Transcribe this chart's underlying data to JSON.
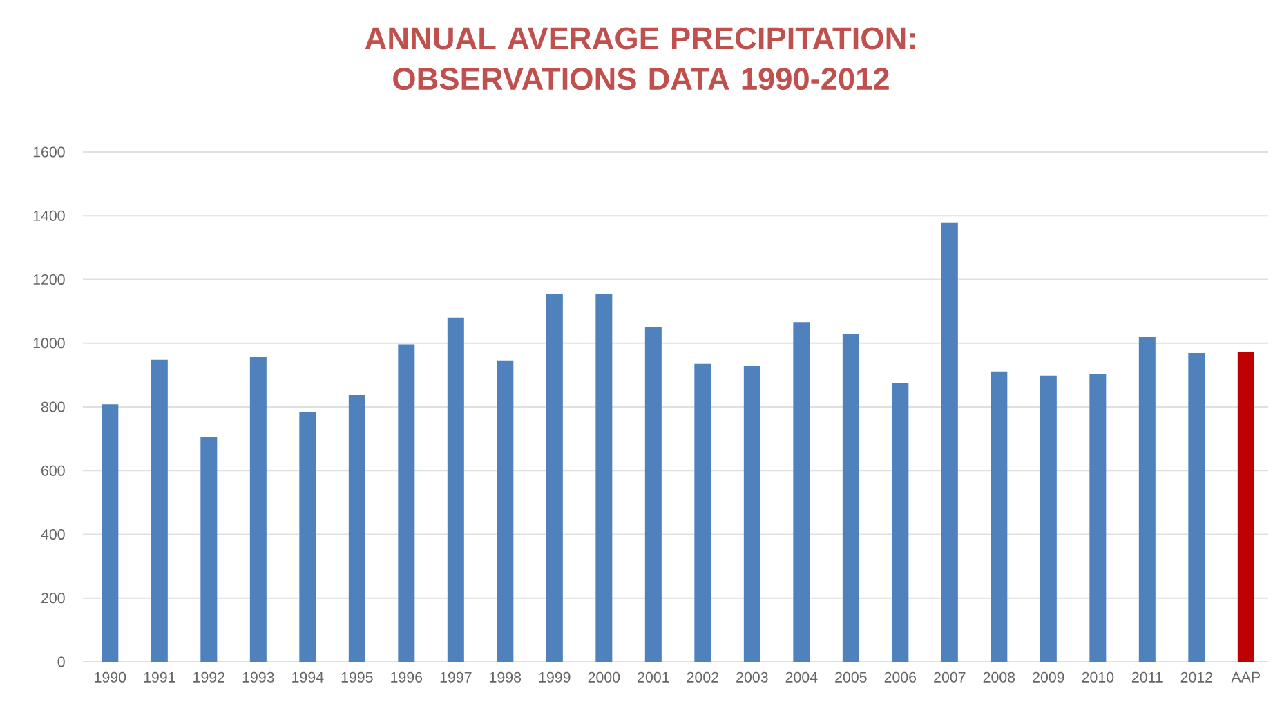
{
  "chart_data": {
    "type": "bar",
    "title": "ANNUAL AVERAGE PRECIPITATION: OBSERVATIONS DATA 1990-2012",
    "categories": [
      "1990",
      "1991",
      "1992",
      "1993",
      "1994",
      "1995",
      "1996",
      "1997",
      "1998",
      "1999",
      "2000",
      "2001",
      "2002",
      "2003",
      "2004",
      "2005",
      "2006",
      "2007",
      "2008",
      "2009",
      "2010",
      "2011",
      "2012",
      "AAP"
    ],
    "values": [
      808,
      948,
      705,
      956,
      783,
      837,
      996,
      1080,
      946,
      1154,
      1154,
      1050,
      935,
      928,
      1066,
      1030,
      875,
      1377,
      911,
      898,
      904,
      1019,
      969,
      973
    ],
    "colors": [
      "#4f81bd",
      "#4f81bd",
      "#4f81bd",
      "#4f81bd",
      "#4f81bd",
      "#4f81bd",
      "#4f81bd",
      "#4f81bd",
      "#4f81bd",
      "#4f81bd",
      "#4f81bd",
      "#4f81bd",
      "#4f81bd",
      "#4f81bd",
      "#4f81bd",
      "#4f81bd",
      "#4f81bd",
      "#4f81bd",
      "#4f81bd",
      "#4f81bd",
      "#4f81bd",
      "#4f81bd",
      "#4f81bd",
      "#c00000"
    ],
    "ylim": [
      0,
      1600
    ],
    "yticks": [
      0,
      200,
      400,
      600,
      800,
      1000,
      1200,
      1400,
      1600
    ],
    "grid": "y"
  }
}
